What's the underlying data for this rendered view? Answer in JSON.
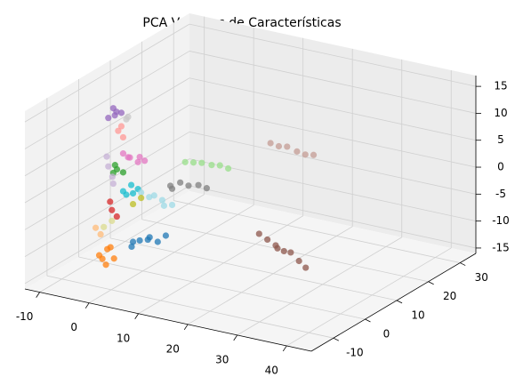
{
  "chart_data": {
    "type": "scatter3d",
    "title": "PCA Vectores de Características",
    "xlim": [
      -13,
      45
    ],
    "ylim": [
      -17,
      35
    ],
    "zlim": [
      -16,
      17
    ],
    "xticks": [
      -10,
      0,
      10,
      20,
      30,
      40
    ],
    "yticks": [
      -10,
      0,
      10,
      20,
      30
    ],
    "zticks": [
      -15,
      -10,
      -5,
      0,
      5,
      10,
      15
    ],
    "grid": true,
    "series": [
      {
        "color": "#8c564b",
        "x": [
          12,
          14,
          16,
          17,
          18,
          20,
          22,
          24
        ],
        "y": [
          18,
          17.5,
          17,
          16,
          16.5,
          15.5,
          15,
          14
        ],
        "z": [
          -13,
          -13.5,
          -14,
          -14,
          -14.5,
          -14,
          -15,
          -15.5
        ]
      },
      {
        "color": "#c49c94",
        "x": [
          22,
          24,
          26,
          28,
          30,
          32
        ],
        "y": [
          6,
          5.5,
          5,
          5,
          4.5,
          4
        ],
        "z": [
          10,
          10,
          10.5,
          10,
          10,
          10.5
        ]
      },
      {
        "color": "#98df8a",
        "x": [
          6,
          8,
          10,
          12,
          14,
          16
        ],
        "y": [
          4,
          3.5,
          3,
          3,
          2.5,
          2
        ],
        "z": [
          4,
          4.5,
          5,
          5,
          5.5,
          5.5
        ]
      },
      {
        "color": "#7f7f7f",
        "x": [
          3,
          5,
          7,
          9,
          11,
          4
        ],
        "y": [
          4,
          4,
          3.5,
          3.5,
          3,
          3
        ],
        "z": [
          -1,
          0,
          0,
          0.5,
          0.5,
          -1
        ]
      },
      {
        "color": "#1f77b4",
        "x": [
          -2,
          0,
          1,
          2,
          3,
          -1,
          4
        ],
        "y": [
          0,
          -1,
          0,
          -1,
          0,
          -2,
          1
        ],
        "z": [
          -11,
          -10,
          -10,
          -9,
          -10,
          -11,
          -9
        ]
      },
      {
        "color": "#ff7f0e",
        "x": [
          -5,
          -4,
          -3,
          -2,
          -4,
          -5
        ],
        "y": [
          -6,
          -5,
          -7,
          -6,
          -4,
          -5
        ],
        "z": [
          -12,
          -11,
          -13,
          -12,
          -11,
          -13
        ]
      },
      {
        "color": "#9467bd",
        "x": [
          -7,
          -6,
          -6,
          -5,
          -6
        ],
        "y": [
          0,
          1,
          0,
          1,
          0.5
        ],
        "z": [
          11,
          12,
          13,
          12,
          11.5
        ]
      },
      {
        "color": "#c7c7c7",
        "x": [
          -4,
          -3
        ],
        "y": [
          1,
          0
        ],
        "z": [
          11,
          12
        ]
      },
      {
        "color": "#ff9896",
        "x": [
          -5,
          -4,
          -5
        ],
        "y": [
          0,
          0,
          1
        ],
        "z": [
          9,
          8,
          9.5
        ]
      },
      {
        "color": "#e377c2",
        "x": [
          -4,
          -2,
          0,
          -3,
          1,
          -1
        ],
        "y": [
          0,
          -1,
          -1,
          0,
          -1,
          0
        ],
        "z": [
          5,
          5,
          5.5,
          4.5,
          5,
          4
        ]
      },
      {
        "color": "#2ca02c",
        "x": [
          -5,
          -6,
          -5,
          -4
        ],
        "y": [
          -0.4,
          0,
          -1,
          0
        ],
        "z": [
          2,
          1,
          3,
          1.5
        ]
      },
      {
        "color": "#c5b0d5",
        "x": [
          -7,
          -6.5,
          -7,
          -6
        ],
        "y": [
          0,
          0.5,
          -0.5,
          0
        ],
        "z": [
          2,
          0,
          4,
          -1
        ]
      },
      {
        "color": "#17becf",
        "x": [
          -4,
          -3,
          -2,
          -4,
          -1
        ],
        "y": [
          0,
          1,
          0,
          1,
          0
        ],
        "z": [
          -2,
          -1,
          -2,
          -3,
          -1
        ]
      },
      {
        "color": "#9edae5",
        "x": [
          0,
          2,
          -1,
          3,
          1,
          4
        ],
        "y": [
          2,
          3,
          1,
          2,
          2,
          3
        ],
        "z": [
          -3,
          -3.5,
          -2,
          -4,
          -2.5,
          -4
        ]
      },
      {
        "color": "#d62728",
        "x": [
          -5,
          -4,
          -6
        ],
        "y": [
          -2,
          -2,
          -1
        ],
        "z": [
          -5,
          -6,
          -4
        ]
      },
      {
        "color": "#bcbd22",
        "x": [
          -2,
          -1
        ],
        "y": [
          0,
          1
        ],
        "z": [
          -4,
          -3
        ]
      },
      {
        "color": "#dbdb8d",
        "x": [
          -6,
          -5
        ],
        "y": [
          -3,
          -2
        ],
        "z": [
          -8,
          -7
        ]
      },
      {
        "color": "#ffbb78",
        "x": [
          -7,
          -6
        ],
        "y": [
          -4,
          -4
        ],
        "z": [
          -8,
          -9
        ]
      }
    ]
  }
}
